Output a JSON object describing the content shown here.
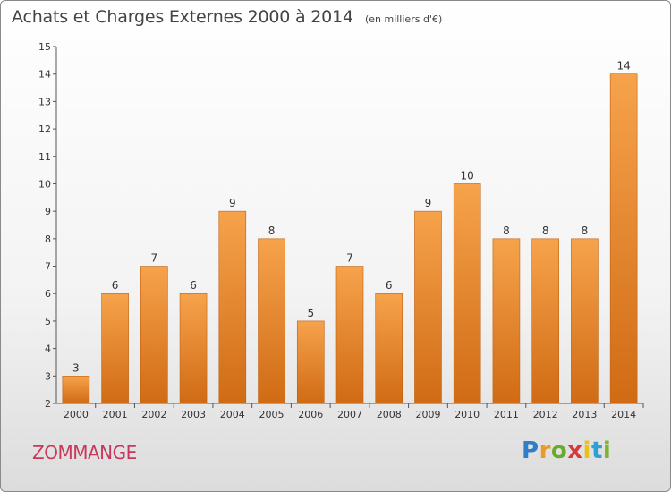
{
  "header": {
    "title": "Achats et Charges Externes 2000 à 2014",
    "subtitle": "(en milliers d'€)"
  },
  "commune": "ZOMMANGE",
  "brand": {
    "text": "Proxiti",
    "letter_colors": [
      "#2f7fc6",
      "#e89a2a",
      "#6aab2e",
      "#d63a3a",
      "#e8c21a",
      "#2f9fd6",
      "#7bb62e"
    ]
  },
  "colors": {
    "bar_top": "#f6a34c",
    "bar_bottom": "#d06b14",
    "bar_edge": "#c06010",
    "axis": "#555555",
    "text": "#333333"
  },
  "chart_data": {
    "type": "bar",
    "categories": [
      "2000",
      "2001",
      "2002",
      "2003",
      "2004",
      "2005",
      "2006",
      "2007",
      "2008",
      "2009",
      "2010",
      "2011",
      "2012",
      "2013",
      "2014"
    ],
    "values": [
      3,
      6,
      7,
      6,
      9,
      8,
      5,
      7,
      6,
      9,
      10,
      8,
      8,
      8,
      14
    ],
    "ylim": [
      2,
      15
    ],
    "yticks": [
      2,
      3,
      4,
      5,
      6,
      7,
      8,
      9,
      10,
      11,
      12,
      13,
      14,
      15
    ],
    "grid": false,
    "legend": "none"
  }
}
